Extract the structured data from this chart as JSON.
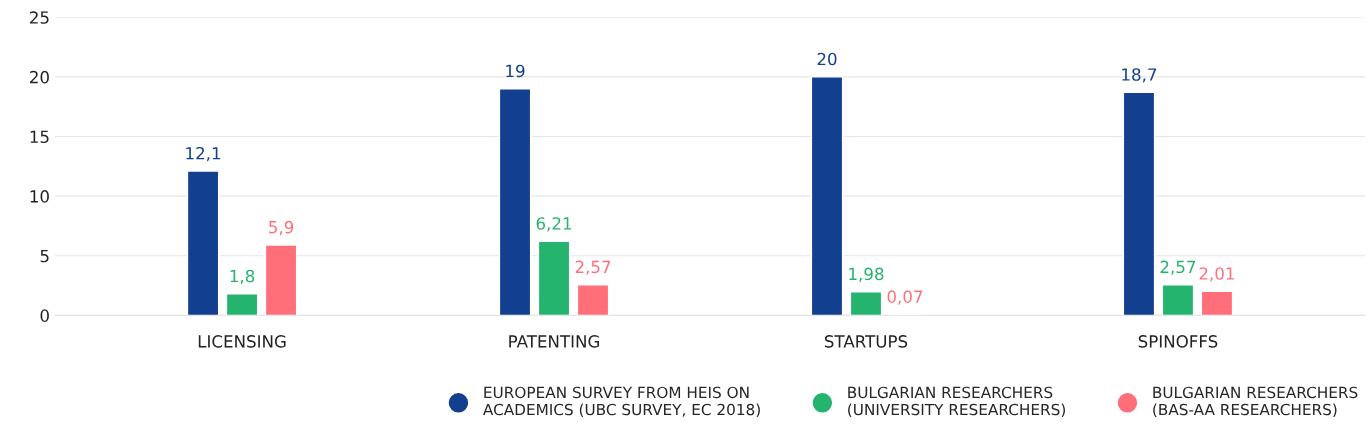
{
  "chart_data": {
    "type": "bar",
    "categories": [
      "LICENSING",
      "PATENTING",
      "STARTUPS",
      "SPINOFFS"
    ],
    "series": [
      {
        "name": "EUROPEAN SURVEY FROM HEIS ON\nACADEMICS (UBC SURVEY, EC 2018)",
        "color": "#12408f",
        "values": [
          12.1,
          19,
          20,
          18.7
        ],
        "value_labels": [
          "12,1",
          "19",
          "20",
          "18,7"
        ]
      },
      {
        "name": "BULGARIAN RESEARCHERS\n(UNIVERSITY RESEARCHERS)",
        "color": "#24b46e",
        "values": [
          1.8,
          6.21,
          1.98,
          2.57
        ],
        "value_labels": [
          "1,8",
          "6,21",
          "1,98",
          "2,57"
        ]
      },
      {
        "name": "BULGARIAN RESEARCHERS\n(BAS-AA RESEARCHERS)",
        "color": "#ff6f7a",
        "values": [
          5.9,
          2.57,
          0.07,
          2.01
        ],
        "value_labels": [
          "5,9",
          "2,57",
          "0,07",
          "2,01"
        ]
      }
    ],
    "ylim": [
      0,
      25
    ],
    "yticks": [
      0,
      5,
      10,
      15,
      20,
      25
    ],
    "grid": "y",
    "legend": "bottom right",
    "marker": "circle"
  }
}
